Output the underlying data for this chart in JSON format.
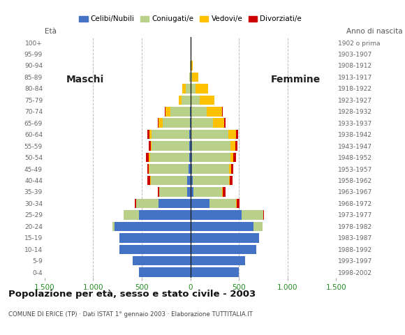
{
  "age_groups": [
    "0-4",
    "5-9",
    "10-14",
    "15-19",
    "20-24",
    "25-29",
    "30-34",
    "35-39",
    "40-44",
    "45-49",
    "50-54",
    "55-59",
    "60-64",
    "65-69",
    "70-74",
    "75-79",
    "80-84",
    "85-89",
    "90-94",
    "95-99",
    "100+"
  ],
  "birth_years": [
    "1998-2002",
    "1993-1997",
    "1988-1992",
    "1983-1987",
    "1978-1982",
    "1973-1977",
    "1968-1972",
    "1963-1967",
    "1958-1962",
    "1953-1957",
    "1948-1952",
    "1943-1947",
    "1938-1942",
    "1933-1937",
    "1928-1932",
    "1923-1927",
    "1918-1922",
    "1913-1917",
    "1908-1912",
    "1903-1907",
    "1902 o prima"
  ],
  "males": {
    "celibe": [
      530,
      590,
      730,
      730,
      780,
      530,
      330,
      30,
      30,
      20,
      15,
      10,
      10,
      5,
      5,
      0,
      0,
      0,
      0,
      0,
      0
    ],
    "coniugato": [
      0,
      0,
      0,
      0,
      20,
      160,
      230,
      290,
      380,
      400,
      400,
      390,
      390,
      280,
      200,
      90,
      50,
      10,
      5,
      0,
      0
    ],
    "vedovo": [
      0,
      0,
      0,
      0,
      0,
      0,
      0,
      0,
      5,
      5,
      10,
      10,
      20,
      40,
      50,
      30,
      30,
      5,
      0,
      0,
      0
    ],
    "divorziato": [
      0,
      0,
      0,
      0,
      0,
      0,
      10,
      15,
      30,
      20,
      30,
      20,
      20,
      10,
      10,
      0,
      0,
      0,
      0,
      0,
      0
    ]
  },
  "females": {
    "nubile": [
      500,
      560,
      680,
      710,
      650,
      530,
      200,
      35,
      25,
      20,
      20,
      15,
      10,
      10,
      5,
      5,
      0,
      0,
      0,
      0,
      0
    ],
    "coniugata": [
      0,
      0,
      0,
      0,
      90,
      220,
      270,
      290,
      370,
      380,
      390,
      400,
      380,
      220,
      160,
      90,
      50,
      15,
      5,
      0,
      0
    ],
    "vedova": [
      0,
      0,
      0,
      0,
      0,
      0,
      5,
      5,
      10,
      20,
      30,
      50,
      80,
      120,
      160,
      150,
      130,
      70,
      20,
      5,
      0
    ],
    "divorziata": [
      0,
      0,
      0,
      0,
      0,
      5,
      30,
      30,
      30,
      20,
      30,
      20,
      20,
      10,
      10,
      0,
      0,
      0,
      0,
      0,
      0
    ]
  },
  "colors": {
    "celibe": "#4472c4",
    "coniugato": "#b8d08a",
    "vedovo": "#ffc000",
    "divorziato": "#cc0000"
  },
  "legend_labels": [
    "Celibi/Nubili",
    "Coniugati/e",
    "Vedovi/e",
    "Divorziati/e"
  ],
  "title": "Popolazione per età, sesso e stato civile - 2003",
  "subtitle": "COMUNE DI ERICE (TP) · Dati ISTAT 1° gennaio 2003 · Elaborazione TUTTITALIA.IT",
  "xlim": 1500,
  "background_color": "#ffffff",
  "grid_color": "#bbbbbb"
}
